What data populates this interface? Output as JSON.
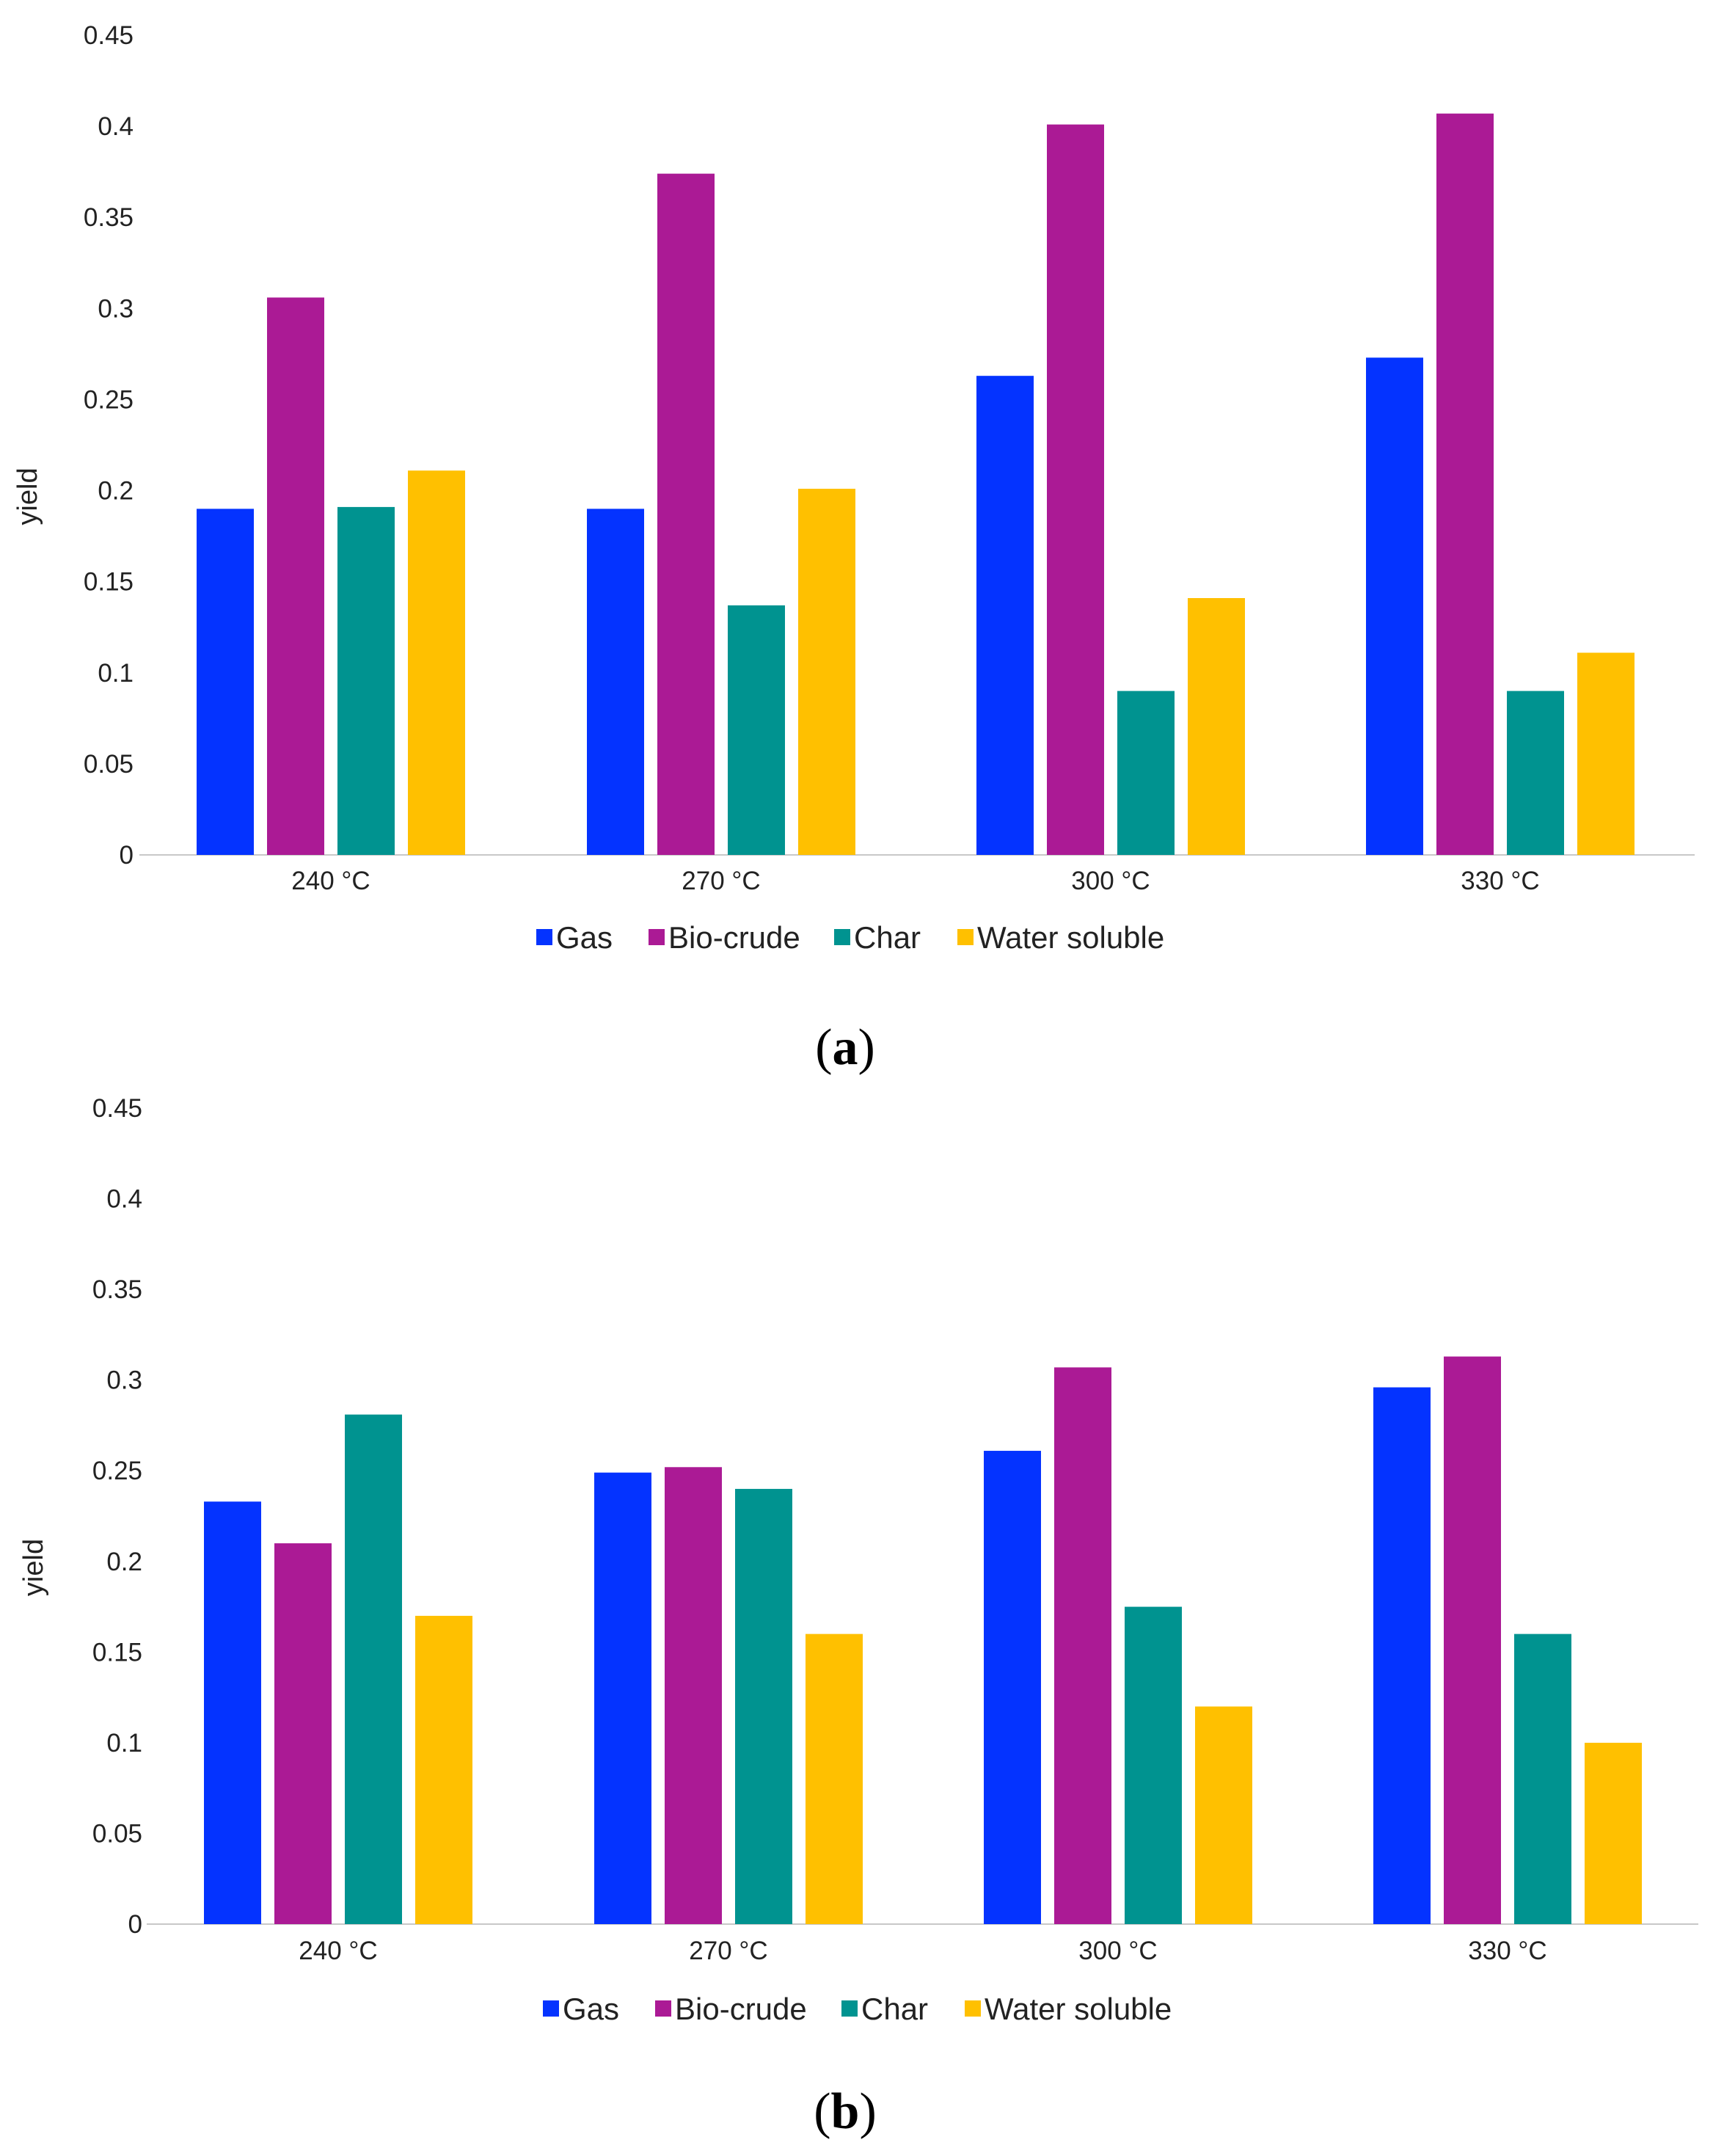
{
  "chart_data": [
    {
      "type": "bar",
      "panel_label": "a",
      "title": "",
      "xlabel": "",
      "ylabel": "yield",
      "ylim": [
        0,
        0.45
      ],
      "yticks": [
        "0",
        "0.05",
        "0.1",
        "0.15",
        "0.2",
        "0.25",
        "0.3",
        "0.35",
        "0.4",
        "0.45"
      ],
      "categories": [
        "240 °C",
        "270 °C",
        "300 °C",
        "330 °C"
      ],
      "series": [
        {
          "name": "Gas",
          "color": "#0433ff",
          "values": [
            0.19,
            0.19,
            0.263,
            0.273
          ]
        },
        {
          "name": "Bio-crude",
          "color": "#ab1a95",
          "values": [
            0.306,
            0.374,
            0.401,
            0.407
          ]
        },
        {
          "name": "Char",
          "color": "#009390",
          "values": [
            0.191,
            0.137,
            0.09,
            0.09
          ]
        },
        {
          "name": "Water soluble",
          "color": "#ffc000",
          "values": [
            0.211,
            0.201,
            0.141,
            0.111
          ]
        }
      ],
      "legend_position": "bottom"
    },
    {
      "type": "bar",
      "panel_label": "b",
      "title": "",
      "xlabel": "",
      "ylabel": "yield",
      "ylim": [
        0,
        0.45
      ],
      "yticks": [
        "0",
        "0.05",
        "0.1",
        "0.15",
        "0.2",
        "0.25",
        "0.3",
        "0.35",
        "0.4",
        "0.45"
      ],
      "categories": [
        "240 °C",
        "270 °C",
        "300 °C",
        "330 °C"
      ],
      "series": [
        {
          "name": "Gas",
          "color": "#0433ff",
          "values": [
            0.233,
            0.249,
            0.261,
            0.296
          ]
        },
        {
          "name": "Bio-crude",
          "color": "#ab1a95",
          "values": [
            0.21,
            0.252,
            0.307,
            0.313
          ]
        },
        {
          "name": "Char",
          "color": "#009390",
          "values": [
            0.281,
            0.24,
            0.175,
            0.16
          ]
        },
        {
          "name": "Water soluble",
          "color": "#ffc000",
          "values": [
            0.17,
            0.16,
            0.12,
            0.1
          ]
        }
      ],
      "legend_position": "bottom"
    }
  ]
}
